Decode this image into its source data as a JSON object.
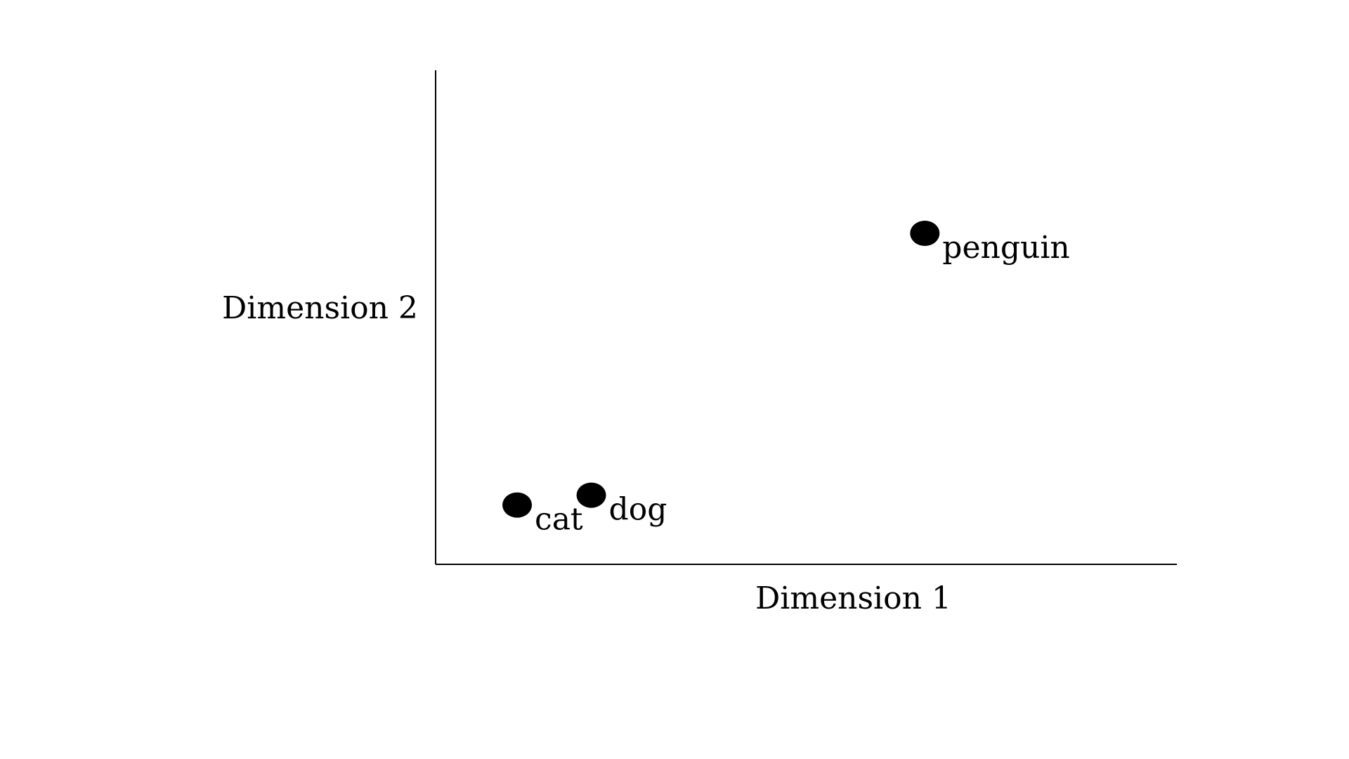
{
  "chart_data": {
    "type": "scatter",
    "title": "",
    "xlabel": "Dimension 1",
    "ylabel": "Dimension 2",
    "xlim": [
      0,
      10
    ],
    "ylim": [
      0,
      10
    ],
    "grid": false,
    "points": [
      {
        "label": "cat",
        "x": 1.1,
        "y": 1.2
      },
      {
        "label": "dog",
        "x": 2.1,
        "y": 1.4
      },
      {
        "label": "penguin",
        "x": 6.6,
        "y": 6.7
      }
    ],
    "colors": {
      "point": "#000000",
      "axis": "#000000"
    }
  }
}
